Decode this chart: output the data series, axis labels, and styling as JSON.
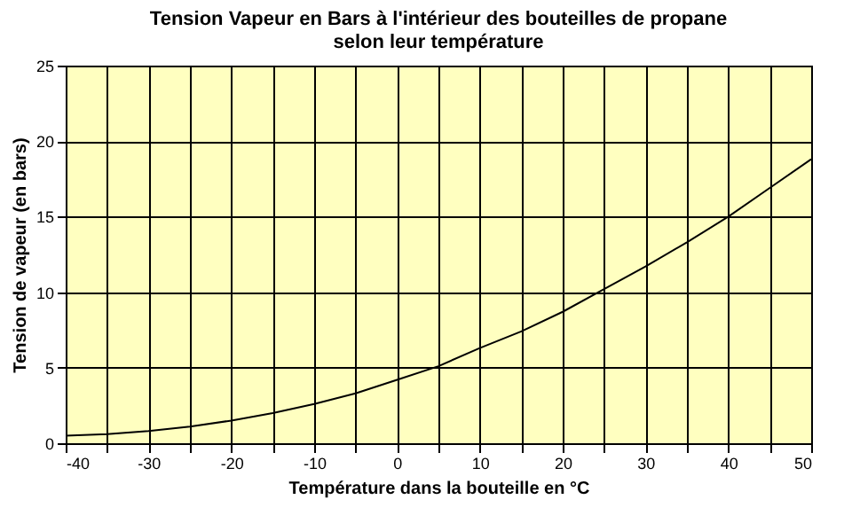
{
  "chart_data": {
    "type": "line",
    "title": [
      "Tension Vapeur en Bars à l'intérieur des bouteilles de propane",
      "selon leur température"
    ],
    "xlabel": "Température dans la bouteille en °C",
    "ylabel": "Tension de vapeur (en bars)",
    "x": [
      -40,
      -35,
      -30,
      -25,
      -20,
      -15,
      -10,
      -5,
      0,
      5,
      10,
      15,
      20,
      25,
      30,
      35,
      40,
      45,
      50
    ],
    "series": [
      {
        "color": "#000000",
        "values": [
          0.5,
          0.6,
          0.8,
          1.1,
          1.5,
          2.0,
          2.6,
          3.3,
          4.2,
          5.1,
          6.3,
          7.4,
          8.7,
          10.2,
          11.7,
          13.3,
          15.0,
          16.9,
          18.8
        ]
      }
    ],
    "xlim": [
      -40,
      50
    ],
    "ylim": [
      0,
      25
    ],
    "xticks": [
      -40,
      {
        "value": -35,
        "label": null
      },
      -30,
      {
        "value": -25,
        "label": null
      },
      -20,
      {
        "value": -15,
        "label": null
      },
      -10,
      {
        "value": -5,
        "label": null
      },
      0,
      {
        "value": 5,
        "label": null
      },
      10,
      {
        "value": 15,
        "label": null
      },
      20,
      {
        "value": 25,
        "label": null
      },
      30,
      {
        "value": 35,
        "label": null
      },
      40,
      {
        "value": 45,
        "label": null
      },
      50
    ],
    "yticks": [
      0,
      5,
      10,
      15,
      20,
      25
    ],
    "grid": true,
    "marker": "none",
    "line_style": "solid"
  }
}
